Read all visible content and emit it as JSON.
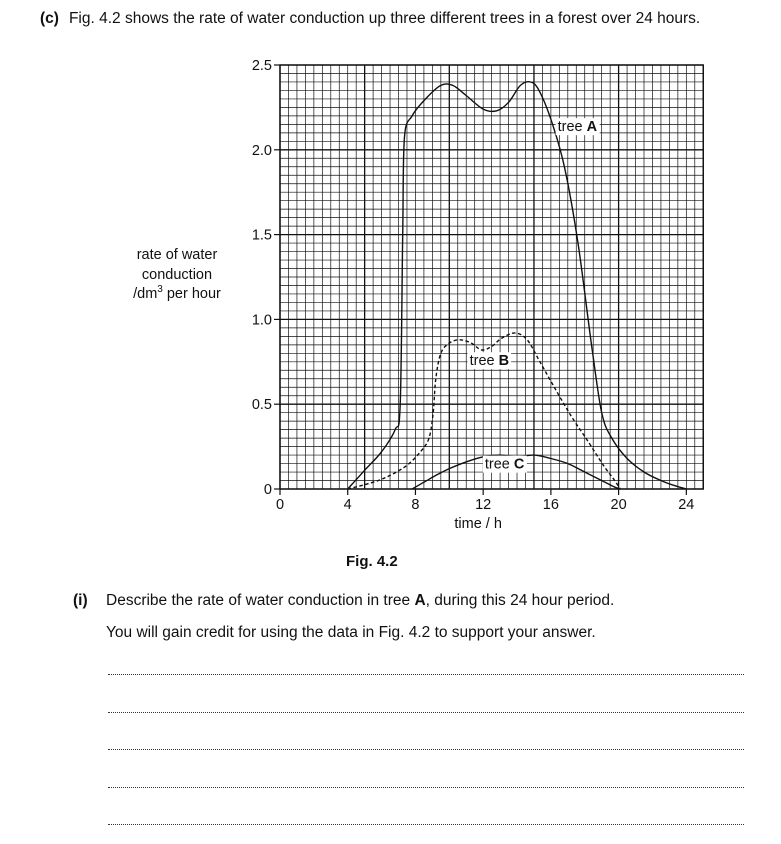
{
  "question": {
    "part_label": "(c)",
    "intro_pre": "Fig. 4.2 shows the rate of water conduction up three different trees in a forest over 24 hours.",
    "fig_caption": "Fig. 4.2",
    "sub_label": "(i)",
    "sub_text_pre": "Describe the rate of water conduction in tree ",
    "sub_text_bold": "A",
    "sub_text_post": ", during this 24 hour period.",
    "hint": "You will gain credit for using the data in Fig. 4.2 to support your answer.",
    "answer_line_count": 5
  },
  "chart_data": {
    "type": "line",
    "ylabel_line1": "rate of water",
    "ylabel_line2": "conduction",
    "ylabel_unit_pre": "/dm",
    "ylabel_unit_sup": "3",
    "ylabel_unit_post": " per hour",
    "xlabel": "time / h",
    "xlim": [
      0,
      25
    ],
    "ylim": [
      0,
      2.5
    ],
    "x_ticks": [
      0,
      4,
      8,
      12,
      16,
      20,
      24
    ],
    "y_ticks": [
      0,
      0.5,
      1.0,
      1.5,
      2.0,
      2.5
    ],
    "y_tick_labels": [
      "0",
      "0.5",
      "1.0",
      "1.5",
      "2.0",
      "2.5"
    ],
    "grid": true,
    "series": [
      {
        "name": "tree A",
        "name_prefix": "tree ",
        "name_bold": "A",
        "style": "solid",
        "label_at": [
          16.4,
          2.11
        ],
        "points": [
          [
            4,
            0
          ],
          [
            5,
            0.11
          ],
          [
            6,
            0.22
          ],
          [
            6.8,
            0.35
          ],
          [
            7.1,
            0.5
          ],
          [
            7.25,
            1.5
          ],
          [
            7.35,
            2.07
          ],
          [
            7.8,
            2.2
          ],
          [
            8.6,
            2.3
          ],
          [
            9.5,
            2.38
          ],
          [
            10.2,
            2.38
          ],
          [
            11,
            2.32
          ],
          [
            12,
            2.24
          ],
          [
            12.8,
            2.23
          ],
          [
            13.5,
            2.28
          ],
          [
            14.2,
            2.38
          ],
          [
            14.8,
            2.4
          ],
          [
            15.3,
            2.35
          ],
          [
            16,
            2.18
          ],
          [
            16.8,
            1.9
          ],
          [
            17.6,
            1.45
          ],
          [
            18.4,
            0.85
          ],
          [
            19,
            0.45
          ],
          [
            19.6,
            0.3
          ],
          [
            20.5,
            0.18
          ],
          [
            21.5,
            0.1
          ],
          [
            22.5,
            0.05
          ],
          [
            23.3,
            0.02
          ],
          [
            24,
            0
          ]
        ]
      },
      {
        "name": "tree B",
        "name_prefix": "tree ",
        "name_bold": "B",
        "style": "dashed",
        "label_at": [
          11.2,
          0.73
        ],
        "points": [
          [
            4,
            0
          ],
          [
            5.5,
            0.04
          ],
          [
            6.5,
            0.08
          ],
          [
            7.5,
            0.14
          ],
          [
            8.3,
            0.22
          ],
          [
            8.8,
            0.3
          ],
          [
            9.05,
            0.45
          ],
          [
            9.2,
            0.65
          ],
          [
            9.5,
            0.8
          ],
          [
            10,
            0.86
          ],
          [
            10.6,
            0.88
          ],
          [
            11.3,
            0.86
          ],
          [
            11.9,
            0.82
          ],
          [
            12.5,
            0.84
          ],
          [
            13.1,
            0.89
          ],
          [
            13.9,
            0.92
          ],
          [
            14.6,
            0.88
          ],
          [
            15.3,
            0.76
          ],
          [
            16.2,
            0.6
          ],
          [
            17.2,
            0.43
          ],
          [
            18.2,
            0.28
          ],
          [
            19.1,
            0.14
          ],
          [
            19.7,
            0.06
          ],
          [
            20.1,
            0
          ]
        ]
      },
      {
        "name": "tree C",
        "name_prefix": "tree ",
        "name_bold": "C",
        "style": "solid",
        "label_at": [
          12.1,
          0.12
        ],
        "points": [
          [
            7.8,
            0
          ],
          [
            8.5,
            0.04
          ],
          [
            9.2,
            0.08
          ],
          [
            10,
            0.12
          ],
          [
            11,
            0.16
          ],
          [
            12,
            0.19
          ],
          [
            13,
            0.2
          ],
          [
            14,
            0.19
          ],
          [
            15,
            0.2
          ],
          [
            16,
            0.18
          ],
          [
            17,
            0.15
          ],
          [
            17.8,
            0.11
          ],
          [
            18.6,
            0.07
          ],
          [
            19.2,
            0.04
          ],
          [
            19.8,
            0.01
          ],
          [
            20.1,
            0
          ]
        ]
      }
    ]
  }
}
